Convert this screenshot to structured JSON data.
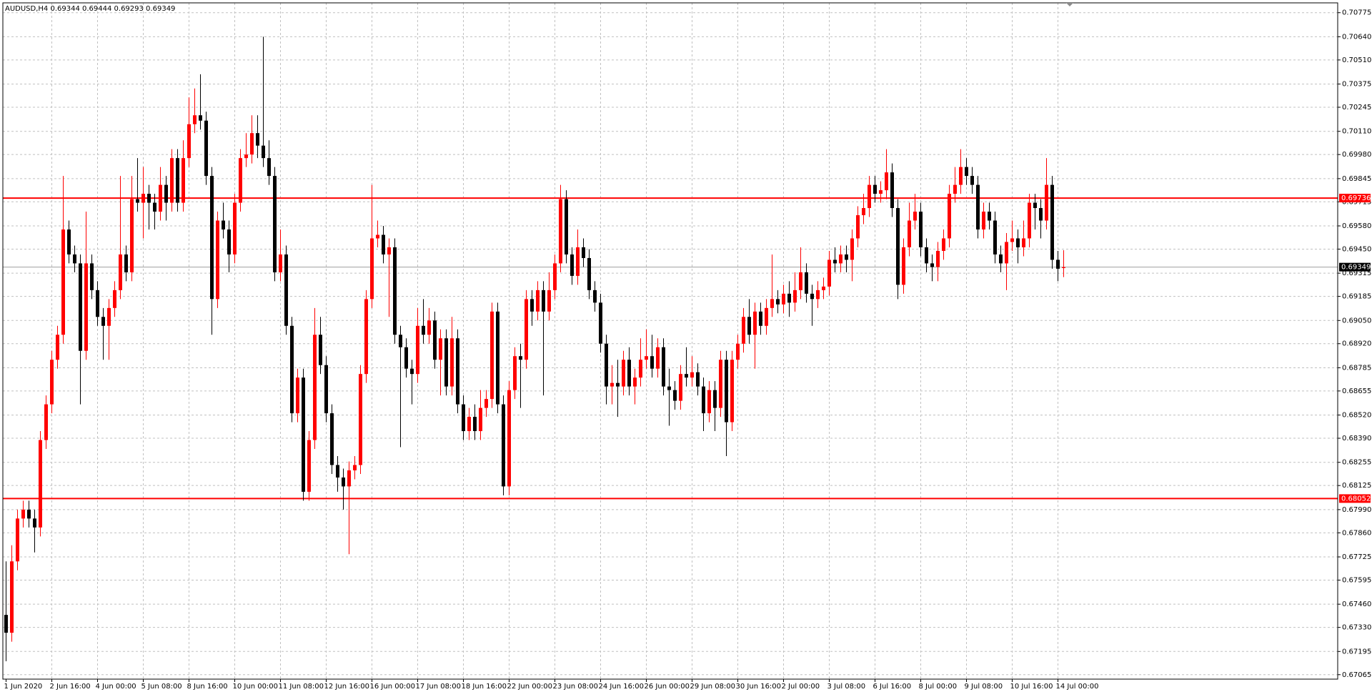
{
  "chart_data": {
    "type": "candlestick",
    "title": "AUDUSD,H4  0.69344 0.69444 0.69293 0.69349",
    "categories": [
      "1 Jun 2020",
      null,
      null,
      null,
      null,
      null,
      null,
      null,
      "2 Jun 16:00",
      null,
      null,
      null,
      null,
      null,
      null,
      null,
      "4 Jun 00:00",
      null,
      null,
      null,
      null,
      null,
      null,
      null,
      "5 Jun 08:00",
      null,
      null,
      null,
      null,
      null,
      null,
      null,
      "8 Jun 16:00",
      null,
      null,
      null,
      null,
      null,
      null,
      null,
      "10 Jun 00:00",
      null,
      null,
      null,
      null,
      null,
      null,
      null,
      "11 Jun 08:00",
      null,
      null,
      null,
      null,
      null,
      null,
      null,
      "12 Jun 16:00",
      null,
      null,
      null,
      null,
      null,
      null,
      null,
      "16 Jun 00:00",
      null,
      null,
      null,
      null,
      null,
      null,
      null,
      "17 Jun 08:00",
      null,
      null,
      null,
      null,
      null,
      null,
      null,
      "18 Jun 16:00",
      null,
      null,
      null,
      null,
      null,
      null,
      null,
      "22 Jun 00:00",
      null,
      null,
      null,
      null,
      null,
      null,
      null,
      "23 Jun 08:00",
      null,
      null,
      null,
      null,
      null,
      null,
      null,
      "24 Jun 16:00",
      null,
      null,
      null,
      null,
      null,
      null,
      null,
      "26 Jun 00:00",
      null,
      null,
      null,
      null,
      null,
      null,
      null,
      "29 Jun 08:00",
      null,
      null,
      null,
      null,
      null,
      null,
      null,
      "30 Jun 16:00",
      null,
      null,
      null,
      null,
      null,
      null,
      null,
      "2 Jul 00:00",
      null,
      null,
      null,
      null,
      null,
      null,
      null,
      "3 Jul 08:00",
      null,
      null,
      null,
      null,
      null,
      null,
      null,
      "6 Jul 16:00",
      null,
      null,
      null,
      null,
      null,
      null,
      null,
      "8 Jul 00:00",
      null,
      null,
      null,
      null,
      null,
      null,
      null,
      "9 Jul 08:00",
      null,
      null,
      null,
      null,
      null,
      null,
      null,
      "10 Jul 16:00",
      null,
      null,
      null,
      null,
      null,
      null,
      null,
      "14 Jul 00:00",
      null
    ],
    "open": [
      0.674,
      0.673,
      0.677,
      0.6794,
      0.6799,
      0.6794,
      0.6789,
      0.6838,
      0.6858,
      0.6883,
      0.6897,
      0.6956,
      0.6942,
      0.6937,
      0.6888,
      0.6937,
      0.6922,
      0.6907,
      0.6902,
      0.6912,
      0.6922,
      0.6942,
      0.6932,
      0.6973,
      0.6971,
      0.6976,
      0.6971,
      0.6966,
      0.6981,
      0.6971,
      0.6996,
      0.6971,
      0.6996,
      0.7015,
      0.702,
      0.7017,
      0.6986,
      0.6917,
      0.6961,
      0.6956,
      0.6942,
      0.6971,
      0.6996,
      0.6998,
      0.701,
      0.7003,
      0.6996,
      0.6986,
      0.6932,
      0.6942,
      0.6902,
      0.6853,
      0.6873,
      0.6809,
      0.6838,
      0.6897,
      0.688,
      0.6853,
      0.6824,
      0.6817,
      0.6812,
      0.6821,
      0.6824,
      0.6875,
      0.6917,
      0.6951,
      0.6953,
      0.6942,
      0.6946,
      0.6897,
      0.689,
      0.6878,
      0.6875,
      0.6902,
      0.6897,
      0.6905,
      0.6883,
      0.6895,
      0.6868,
      0.6895,
      0.6858,
      0.6843,
      0.6851,
      0.6843,
      0.6856,
      0.6861,
      0.691,
      0.6858,
      0.6812,
      0.6866,
      0.6885,
      0.6883,
      0.6917,
      0.691,
      0.6922,
      0.691,
      0.6922,
      0.6937,
      0.6973,
      0.6942,
      0.693,
      0.6946,
      0.694,
      0.6922,
      0.6915,
      0.6892,
      0.6868,
      0.687,
      0.6868,
      0.6883,
      0.6868,
      0.6873,
      0.6883,
      0.6885,
      0.6878,
      0.689,
      0.6868,
      0.6866,
      0.686,
      0.6875,
      0.6873,
      0.6876,
      0.6868,
      0.6853,
      0.6866,
      0.6856,
      0.6883,
      0.6848,
      0.6883,
      0.6892,
      0.6907,
      0.6897,
      0.691,
      0.6902,
      0.6912,
      0.6917,
      0.6914,
      0.692,
      0.6915,
      0.6922,
      0.6932,
      0.692,
      0.6917,
      0.6922,
      0.6924,
      0.6939,
      0.6937,
      0.6942,
      0.6939,
      0.6951,
      0.6964,
      0.6968,
      0.6981,
      0.6976,
      0.6978,
      0.6988,
      0.6968,
      0.6925,
      0.6946,
      0.6961,
      0.6966,
      0.6946,
      0.6937,
      0.6935,
      0.6944,
      0.6951,
      0.6976,
      0.6981,
      0.6991,
      0.6986,
      0.6981,
      0.6956,
      0.6966,
      0.6961,
      0.6942,
      0.6937,
      0.6949,
      0.6951,
      0.6946,
      0.6951,
      0.6971,
      0.6968,
      0.6961,
      0.6981,
      0.6939,
      0.69344
    ],
    "high": [
      0.677,
      0.6779,
      0.6799,
      0.6804,
      0.6804,
      0.6799,
      0.6843,
      0.6863,
      0.6888,
      0.6902,
      0.6986,
      0.6961,
      0.6947,
      0.6942,
      0.6966,
      0.6942,
      0.6927,
      0.6912,
      0.6917,
      0.6927,
      0.6986,
      0.6947,
      0.6986,
      0.6996,
      0.6991,
      0.6981,
      0.6976,
      0.6991,
      0.6986,
      0.7001,
      0.7001,
      0.7006,
      0.703,
      0.7035,
      0.7043,
      0.7022,
      0.6991,
      0.6966,
      0.6971,
      0.6961,
      0.6976,
      0.7001,
      0.701,
      0.702,
      0.702,
      0.7064,
      0.7006,
      0.6991,
      0.6956,
      0.6947,
      0.6907,
      0.6878,
      0.6878,
      0.6843,
      0.6912,
      0.6907,
      0.6885,
      0.6858,
      0.6829,
      0.6822,
      0.6826,
      0.6829,
      0.688,
      0.6922,
      0.6981,
      0.6961,
      0.6958,
      0.6951,
      0.6951,
      0.6902,
      0.6895,
      0.6883,
      0.6912,
      0.6917,
      0.6912,
      0.691,
      0.69,
      0.69,
      0.6907,
      0.69,
      0.6863,
      0.6856,
      0.6858,
      0.6866,
      0.6866,
      0.6915,
      0.6915,
      0.6863,
      0.6871,
      0.689,
      0.6892,
      0.6922,
      0.6922,
      0.6927,
      0.6927,
      0.6932,
      0.6942,
      0.6981,
      0.6978,
      0.6946,
      0.6956,
      0.6951,
      0.6945,
      0.6927,
      0.692,
      0.6897,
      0.688,
      0.6883,
      0.6888,
      0.689,
      0.6878,
      0.6895,
      0.69,
      0.6897,
      0.6895,
      0.6895,
      0.6878,
      0.6871,
      0.688,
      0.689,
      0.6885,
      0.6881,
      0.6873,
      0.6871,
      0.6871,
      0.6888,
      0.6888,
      0.6888,
      0.6897,
      0.6912,
      0.6917,
      0.6915,
      0.6915,
      0.6917,
      0.6942,
      0.6922,
      0.6925,
      0.6927,
      0.6932,
      0.6946,
      0.6937,
      0.6925,
      0.6927,
      0.6929,
      0.6944,
      0.6946,
      0.6947,
      0.6947,
      0.6956,
      0.6969,
      0.6976,
      0.6986,
      0.6986,
      0.6983,
      0.7001,
      0.6993,
      0.6973,
      0.6951,
      0.6971,
      0.6976,
      0.6971,
      0.6951,
      0.6942,
      0.6949,
      0.6956,
      0.6981,
      0.6991,
      0.7001,
      0.6996,
      0.6991,
      0.6986,
      0.6971,
      0.6971,
      0.6966,
      0.6947,
      0.6954,
      0.6961,
      0.6956,
      0.6961,
      0.6976,
      0.6976,
      0.6973,
      0.6996,
      0.6986,
      0.6944,
      0.69444
    ],
    "low": [
      0.6714,
      0.6725,
      0.6765,
      0.6789,
      0.6789,
      0.6775,
      0.6784,
      0.6833,
      0.6853,
      0.6878,
      0.6892,
      0.6937,
      0.6932,
      0.6858,
      0.6883,
      0.6917,
      0.6902,
      0.6883,
      0.6883,
      0.6907,
      0.6917,
      0.6927,
      0.6927,
      0.6966,
      0.6951,
      0.6956,
      0.6956,
      0.6961,
      0.6961,
      0.6966,
      0.6966,
      0.6966,
      0.6991,
      0.701,
      0.7012,
      0.6981,
      0.6897,
      0.6912,
      0.6951,
      0.6932,
      0.6937,
      0.6966,
      0.6991,
      0.6993,
      0.6996,
      0.6991,
      0.6981,
      0.6927,
      0.6927,
      0.6897,
      0.6848,
      0.6848,
      0.6804,
      0.6804,
      0.6833,
      0.6875,
      0.6848,
      0.6819,
      0.6809,
      0.6799,
      0.6774,
      0.6816,
      0.6819,
      0.687,
      0.6912,
      0.6946,
      0.6937,
      0.6907,
      0.6892,
      0.6834,
      0.6873,
      0.6858,
      0.687,
      0.6892,
      0.6892,
      0.6878,
      0.6863,
      0.6863,
      0.6863,
      0.6853,
      0.6838,
      0.6838,
      0.6838,
      0.6838,
      0.6851,
      0.6856,
      0.6853,
      0.6807,
      0.6807,
      0.6861,
      0.6856,
      0.6878,
      0.6902,
      0.6905,
      0.6863,
      0.6905,
      0.6917,
      0.6932,
      0.6937,
      0.6925,
      0.6925,
      0.6935,
      0.6917,
      0.691,
      0.6887,
      0.6858,
      0.6858,
      0.6851,
      0.6863,
      0.6863,
      0.6858,
      0.6868,
      0.6878,
      0.6873,
      0.6873,
      0.6863,
      0.6846,
      0.6855,
      0.6855,
      0.6868,
      0.6868,
      0.6863,
      0.6843,
      0.6848,
      0.6843,
      0.6851,
      0.6829,
      0.6843,
      0.6878,
      0.6887,
      0.6892,
      0.6878,
      0.6897,
      0.6897,
      0.6907,
      0.6909,
      0.6909,
      0.6907,
      0.691,
      0.6917,
      0.6915,
      0.6902,
      0.6912,
      0.6917,
      0.6919,
      0.6932,
      0.6932,
      0.6932,
      0.6927,
      0.6946,
      0.6959,
      0.6963,
      0.6971,
      0.6971,
      0.6973,
      0.6963,
      0.6917,
      0.692,
      0.6941,
      0.6956,
      0.6941,
      0.6932,
      0.6927,
      0.6927,
      0.6939,
      0.6946,
      0.6971,
      0.6976,
      0.6981,
      0.6976,
      0.6951,
      0.6951,
      0.6956,
      0.6937,
      0.6932,
      0.6922,
      0.6944,
      0.6937,
      0.6941,
      0.6946,
      0.6956,
      0.6951,
      0.6956,
      0.6934,
      0.6927,
      0.69293
    ],
    "close": [
      0.673,
      0.677,
      0.6794,
      0.6799,
      0.6794,
      0.6789,
      0.6838,
      0.6858,
      0.6883,
      0.6897,
      0.6956,
      0.6942,
      0.6937,
      0.6888,
      0.6937,
      0.6922,
      0.6907,
      0.6902,
      0.6912,
      0.6922,
      0.6942,
      0.6932,
      0.6973,
      0.6971,
      0.6976,
      0.6971,
      0.6966,
      0.6981,
      0.6971,
      0.6996,
      0.6971,
      0.6996,
      0.7015,
      0.702,
      0.7017,
      0.6986,
      0.6917,
      0.6961,
      0.6956,
      0.6942,
      0.6971,
      0.6996,
      0.6998,
      0.701,
      0.7003,
      0.6996,
      0.6986,
      0.6932,
      0.6942,
      0.6902,
      0.6853,
      0.6873,
      0.6809,
      0.6838,
      0.6897,
      0.688,
      0.6853,
      0.6824,
      0.6817,
      0.6812,
      0.6821,
      0.6824,
      0.6875,
      0.6917,
      0.6951,
      0.6953,
      0.6942,
      0.6946,
      0.6897,
      0.689,
      0.6878,
      0.6875,
      0.6902,
      0.6897,
      0.6905,
      0.6883,
      0.6895,
      0.6868,
      0.6895,
      0.6858,
      0.6843,
      0.6851,
      0.6843,
      0.6856,
      0.6861,
      0.691,
      0.6858,
      0.6812,
      0.6866,
      0.6885,
      0.6883,
      0.6917,
      0.691,
      0.6922,
      0.691,
      0.6922,
      0.6937,
      0.6973,
      0.6942,
      0.693,
      0.6946,
      0.694,
      0.6922,
      0.6915,
      0.6892,
      0.6868,
      0.687,
      0.6868,
      0.6883,
      0.6868,
      0.6873,
      0.6883,
      0.6885,
      0.6878,
      0.689,
      0.6868,
      0.6866,
      0.686,
      0.6875,
      0.6873,
      0.6876,
      0.6868,
      0.6853,
      0.6866,
      0.6856,
      0.6883,
      0.6848,
      0.6883,
      0.6892,
      0.6907,
      0.6897,
      0.691,
      0.6902,
      0.6912,
      0.6917,
      0.6914,
      0.692,
      0.6915,
      0.6922,
      0.6932,
      0.692,
      0.6917,
      0.6922,
      0.6924,
      0.6939,
      0.6937,
      0.6942,
      0.6939,
      0.6951,
      0.6964,
      0.6968,
      0.6981,
      0.6976,
      0.6978,
      0.6988,
      0.6968,
      0.6925,
      0.6946,
      0.6961,
      0.6966,
      0.6946,
      0.6937,
      0.6935,
      0.6944,
      0.6951,
      0.6976,
      0.6981,
      0.6991,
      0.6986,
      0.6981,
      0.6956,
      0.6966,
      0.6961,
      0.6942,
      0.6937,
      0.6949,
      0.6951,
      0.6946,
      0.6951,
      0.6971,
      0.6968,
      0.6961,
      0.6981,
      0.6939,
      0.6934,
      0.69349
    ],
    "up_color": "#ff0000",
    "down_color": "#000000",
    "ylim": [
      0.6704,
      0.7083
    ],
    "yticks": [
      0.70775,
      {
        "value": 0.7064,
        "label": "0.70640"
      },
      {
        "value": 0.7051,
        "label": "0.70510"
      },
      0.70375,
      0.70245,
      {
        "value": 0.7011,
        "label": "0.70110"
      },
      {
        "value": 0.6998,
        "label": "0.69980"
      },
      0.69845,
      0.69715,
      {
        "value": 0.6958,
        "label": "0.69580"
      },
      {
        "value": 0.6945,
        "label": "0.69450"
      },
      0.69315,
      0.69185,
      {
        "value": 0.6905,
        "label": "0.69050"
      },
      {
        "value": 0.6892,
        "label": "0.68920"
      },
      0.68785,
      0.68655,
      {
        "value": 0.6852,
        "label": "0.68520"
      },
      {
        "value": 0.6839,
        "label": "0.68390"
      },
      0.68255,
      0.68125,
      {
        "value": 0.6799,
        "label": "0.67990"
      },
      {
        "value": 0.6786,
        "label": "0.67860"
      },
      0.67725,
      0.67595,
      {
        "value": 0.6746,
        "label": "0.67460"
      },
      {
        "value": 0.6733,
        "label": "0.67330"
      },
      0.67195,
      0.67065
    ],
    "grid": true,
    "hlines": [
      {
        "value": 0.69736,
        "color": "#ff0000"
      },
      {
        "value": 0.68052,
        "color": "#ff0000"
      }
    ],
    "bid_line": {
      "value": 0.69349,
      "color": "#a0a0a0"
    }
  }
}
